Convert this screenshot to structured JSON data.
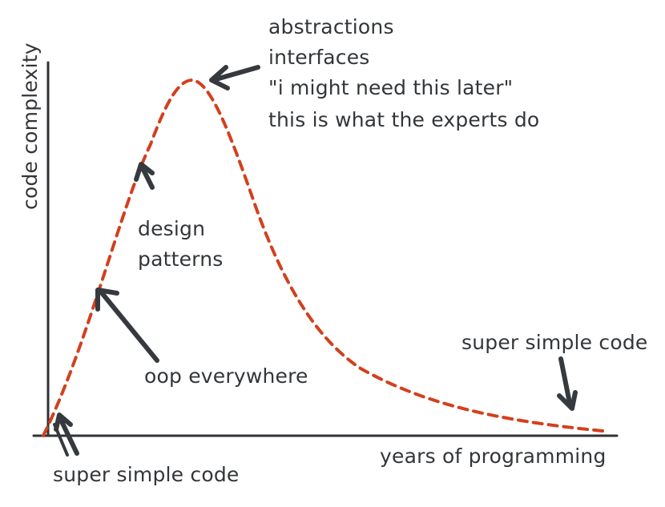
{
  "axes": {
    "y_label": "code complexity",
    "x_label": "years of programming"
  },
  "annotations": {
    "peak_lines": [
      "abstractions",
      "interfaces",
      "\"i might need this later\"",
      "this is what the experts do"
    ],
    "design_patterns": [
      "design",
      "patterns"
    ],
    "oop": "oop everywhere",
    "start": "super simple code",
    "end": "super simple code"
  },
  "colors": {
    "curve": "#d2401d",
    "ink": "#333639"
  }
}
